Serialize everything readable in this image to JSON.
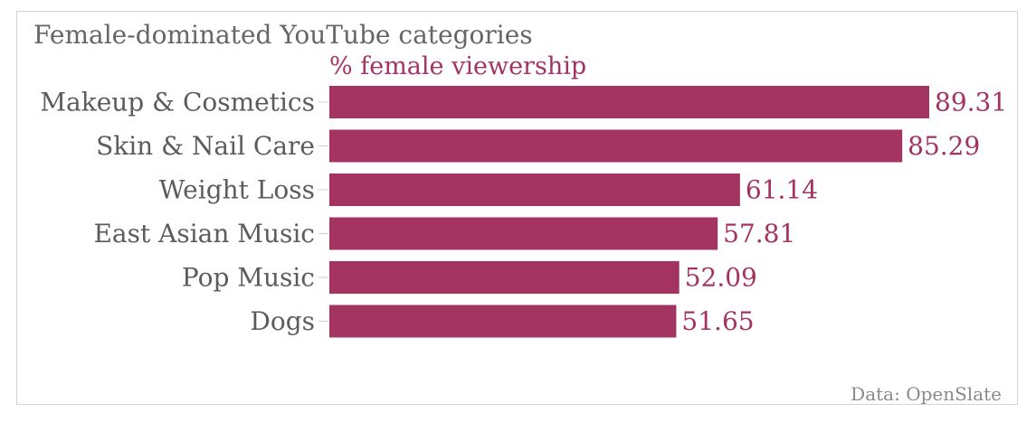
{
  "chart_data": {
    "type": "bar",
    "orientation": "horizontal",
    "title": "Female-dominated YouTube categories",
    "subtitle": "% female viewership",
    "source": "Data: OpenSlate",
    "categories": [
      "Makeup & Cosmetics",
      "Skin & Nail Care",
      "Weight Loss",
      "East Asian Music",
      "Pop Music",
      "Dogs"
    ],
    "values": [
      89.31,
      85.29,
      61.14,
      57.81,
      52.09,
      51.65
    ],
    "value_labels": [
      "89.31",
      "85.29",
      "61.14",
      "57.81",
      "52.09",
      "51.65"
    ],
    "xlim": [
      0,
      89.31
    ],
    "bar_color": "#a33461",
    "grid": false,
    "legend": "none"
  }
}
